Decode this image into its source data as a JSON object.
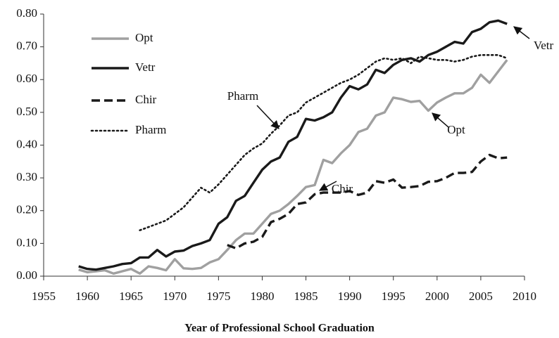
{
  "chart_data": {
    "type": "line",
    "xlabel": "Year of Professional School Graduation",
    "x": [
      1959,
      1960,
      1961,
      1962,
      1963,
      1964,
      1965,
      1966,
      1967,
      1968,
      1969,
      1970,
      1971,
      1972,
      1973,
      1974,
      1975,
      1976,
      1977,
      1978,
      1979,
      1980,
      1981,
      1982,
      1983,
      1984,
      1985,
      1986,
      1987,
      1988,
      1989,
      1990,
      1991,
      1992,
      1993,
      1994,
      1995,
      1996,
      1997,
      1998,
      1999,
      2000,
      2001,
      2002,
      2003,
      2004,
      2005,
      2006,
      2007,
      2008
    ],
    "series": [
      {
        "name": "Opt",
        "color": "#a0a0a0",
        "dash": "solid",
        "values": [
          0.02,
          0.012,
          0.015,
          0.018,
          0.008,
          0.015,
          0.022,
          0.008,
          0.03,
          0.025,
          0.018,
          0.052,
          0.024,
          0.022,
          0.025,
          0.042,
          0.052,
          0.08,
          0.11,
          0.13,
          0.13,
          0.16,
          0.19,
          0.2,
          0.22,
          0.245,
          0.272,
          0.278,
          0.355,
          0.345,
          0.375,
          0.4,
          0.44,
          0.45,
          0.49,
          0.5,
          0.545,
          0.54,
          0.532,
          0.535,
          0.505,
          0.53,
          0.545,
          0.558,
          0.558,
          0.575,
          0.615,
          0.59,
          0.625,
          0.66
        ]
      },
      {
        "name": "Vetr",
        "color": "#1a1a1a",
        "dash": "solid",
        "values": [
          0.03,
          0.022,
          0.02,
          0.025,
          0.03,
          0.037,
          0.04,
          0.057,
          0.057,
          0.08,
          0.06,
          0.075,
          0.078,
          0.092,
          0.1,
          0.11,
          0.16,
          0.18,
          0.23,
          0.245,
          0.285,
          0.325,
          0.35,
          0.362,
          0.41,
          0.425,
          0.48,
          0.475,
          0.485,
          0.5,
          0.545,
          0.58,
          0.57,
          0.585,
          0.63,
          0.62,
          0.645,
          0.66,
          0.665,
          0.655,
          0.675,
          0.685,
          0.7,
          0.715,
          0.71,
          0.745,
          0.755,
          0.775,
          0.78,
          0.77
        ]
      },
      {
        "name": "Chir",
        "color": "#1a1a1a",
        "dash": "dashed",
        "values": [
          null,
          null,
          null,
          null,
          null,
          null,
          null,
          null,
          null,
          null,
          null,
          null,
          null,
          null,
          null,
          null,
          null,
          0.095,
          0.085,
          0.1,
          0.105,
          0.12,
          0.165,
          0.175,
          0.19,
          0.22,
          0.225,
          0.25,
          0.255,
          0.255,
          0.255,
          0.26,
          0.248,
          0.255,
          0.29,
          0.285,
          0.295,
          0.27,
          0.272,
          0.275,
          0.288,
          0.29,
          0.3,
          0.315,
          0.315,
          0.318,
          0.35,
          0.37,
          0.36,
          0.362
        ]
      },
      {
        "name": "Pharm",
        "color": "#1a1a1a",
        "dash": "dotted",
        "values": [
          null,
          null,
          null,
          null,
          null,
          null,
          null,
          0.14,
          0.15,
          0.16,
          0.17,
          0.19,
          0.21,
          0.24,
          0.27,
          0.255,
          0.28,
          0.31,
          0.34,
          0.37,
          0.39,
          0.405,
          0.435,
          0.46,
          0.49,
          0.5,
          0.53,
          0.545,
          0.56,
          0.575,
          0.59,
          0.6,
          0.615,
          0.635,
          0.655,
          0.665,
          0.66,
          0.665,
          0.65,
          0.67,
          0.665,
          0.66,
          0.66,
          0.655,
          0.66,
          0.67,
          0.675,
          0.675,
          0.675,
          0.665
        ]
      }
    ],
    "annotations": [
      "Pharm",
      "Opt",
      "Vetr",
      "Chir"
    ],
    "xlim": [
      1955,
      2010
    ],
    "xticks": [
      1955,
      1960,
      1965,
      1970,
      1975,
      1980,
      1985,
      1990,
      1995,
      2000,
      2005,
      2010
    ],
    "ylim": [
      0,
      0.8
    ],
    "yticks": [
      {
        "value": 0,
        "label": "0.00"
      },
      {
        "value": 0.1,
        "label": "0.10"
      },
      {
        "value": 0.2,
        "label": "0.20"
      },
      {
        "value": 0.3,
        "label": "0.30"
      },
      {
        "value": 0.4,
        "label": "0.40"
      },
      {
        "value": 0.5,
        "label": "0.50"
      },
      {
        "value": 0.6,
        "label": "0.60"
      },
      {
        "value": 0.7,
        "label": "0.70"
      },
      {
        "value": 0.8,
        "label": "0.80"
      }
    ],
    "grid": false,
    "legend": "upper left"
  }
}
